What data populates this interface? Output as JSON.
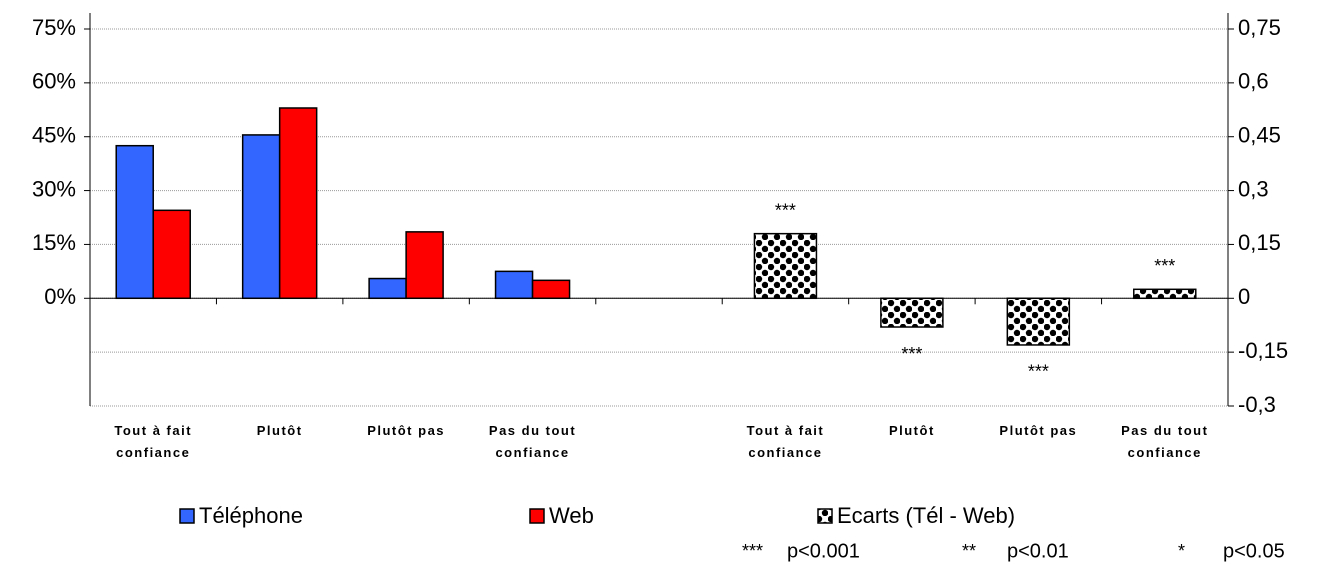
{
  "chart_data": {
    "type": "bar",
    "categories": [
      "Tout à fait confiance",
      "Plutôt",
      "Plutôt pas",
      "Pas du tout confiance",
      null,
      "Tout à fait confiance",
      "Plutôt",
      "Plutôt pas",
      "Pas du tout confiance"
    ],
    "series": [
      {
        "name": "Téléphone",
        "color": "#3366ff",
        "values": [
          42.5,
          45.5,
          5.5,
          7.5,
          null,
          null,
          null,
          null,
          null
        ]
      },
      {
        "name": "Web",
        "color": "#ff0000",
        "values": [
          24.5,
          53,
          18.5,
          5,
          null,
          null,
          null,
          null,
          null
        ]
      },
      {
        "name": "Ecarts (Tél - Web)",
        "color": "#000000",
        "axis": "y2",
        "values": [
          null,
          null,
          null,
          null,
          null,
          0.18,
          -0.08,
          -0.13,
          0.025
        ],
        "annotations": [
          null,
          null,
          null,
          null,
          null,
          "***",
          "***",
          "***",
          "***"
        ]
      }
    ],
    "ylim": [
      -30,
      75
    ],
    "yticks": [
      {
        "value": 0,
        "label": "0%"
      },
      {
        "value": 15,
        "label": "15%"
      },
      {
        "value": 30,
        "label": "30%"
      },
      {
        "value": 45,
        "label": "45%"
      },
      {
        "value": 60,
        "label": "60%"
      },
      {
        "value": 75,
        "label": "75%"
      }
    ],
    "y2lim": [
      -0.3,
      0.75
    ],
    "y2ticks": [
      {
        "value": -0.3,
        "label": "-0,3"
      },
      {
        "value": -0.15,
        "label": "-0,15"
      },
      0,
      {
        "value": 0.15,
        "label": "0,15"
      },
      {
        "value": 0.3,
        "label": "0,3"
      },
      {
        "value": 0.45,
        "label": "0,45"
      },
      {
        "value": 0.6,
        "label": "0,6"
      },
      {
        "value": 0.75,
        "label": "0,75"
      }
    ],
    "grid": true,
    "notes": [
      {
        "stars": "***",
        "text": "p<0.001"
      },
      {
        "stars": "**",
        "text": "p<0.01"
      },
      {
        "stars": "*",
        "text": "p<0.05"
      }
    ]
  }
}
